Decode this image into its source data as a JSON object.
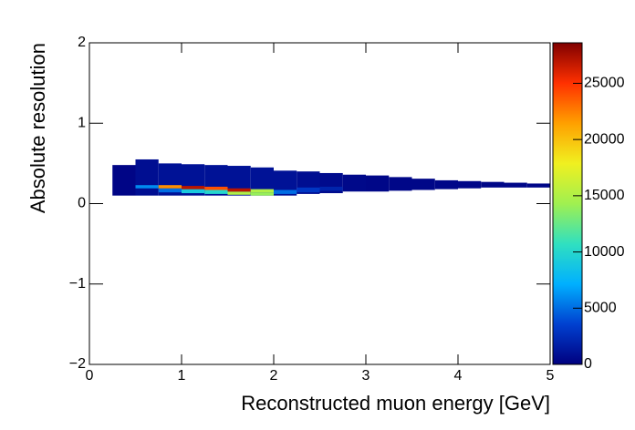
{
  "chart_data": {
    "type": "heatmap",
    "x_label": "Reconstructed muon energy [GeV]",
    "y_label": "Absolute resolution",
    "xlim": [
      0,
      5
    ],
    "xticks": [
      0,
      1,
      2,
      3,
      4,
      5
    ],
    "ylim": [
      -2,
      2
    ],
    "yticks": [
      {
        "value": -2,
        "label": "−2"
      },
      {
        "value": -1,
        "label": "−1"
      },
      0,
      1,
      2
    ],
    "zlim": [
      0,
      28600
    ],
    "zticks": [
      0,
      5000,
      10000,
      15000,
      20000,
      25000
    ],
    "colormap": [
      "#00007f",
      "#0040d0",
      "#00b0ff",
      "#30e0c0",
      "#a0f050",
      "#f0f020",
      "#ffa000",
      "#ff3000",
      "#800000"
    ],
    "cells": [
      {
        "x": [
          0.25,
          0.5
        ],
        "y": [
          0.1,
          0.48
        ],
        "value": 300
      },
      {
        "x": [
          0.5,
          0.75
        ],
        "y": [
          0.1,
          0.55
        ],
        "value": 800
      },
      {
        "x": [
          0.5,
          0.75
        ],
        "y": [
          0.19,
          0.23
        ],
        "value": 6000
      },
      {
        "x": [
          0.75,
          1.0
        ],
        "y": [
          0.1,
          0.5
        ],
        "value": 1000
      },
      {
        "x": [
          0.75,
          1.0
        ],
        "y": [
          0.14,
          0.19
        ],
        "value": 5000
      },
      {
        "x": [
          0.75,
          1.0
        ],
        "y": [
          0.19,
          0.23
        ],
        "value": 22000
      },
      {
        "x": [
          1.0,
          1.25
        ],
        "y": [
          0.1,
          0.49
        ],
        "value": 1000
      },
      {
        "x": [
          1.0,
          1.25
        ],
        "y": [
          0.13,
          0.18
        ],
        "value": 9000
      },
      {
        "x": [
          1.0,
          1.25
        ],
        "y": [
          0.18,
          0.22
        ],
        "value": 27000
      },
      {
        "x": [
          1.25,
          1.5
        ],
        "y": [
          0.1,
          0.48
        ],
        "value": 1000
      },
      {
        "x": [
          1.25,
          1.5
        ],
        "y": [
          0.12,
          0.17
        ],
        "value": 10000
      },
      {
        "x": [
          1.25,
          1.5
        ],
        "y": [
          0.17,
          0.21
        ],
        "value": 24000
      },
      {
        "x": [
          1.5,
          1.75
        ],
        "y": [
          0.1,
          0.47
        ],
        "value": 1000
      },
      {
        "x": [
          1.5,
          1.75
        ],
        "y": [
          0.11,
          0.15
        ],
        "value": 15000
      },
      {
        "x": [
          1.5,
          1.75
        ],
        "y": [
          0.15,
          0.19
        ],
        "value": 27000
      },
      {
        "x": [
          1.75,
          2.0
        ],
        "y": [
          0.1,
          0.45
        ],
        "value": 1000
      },
      {
        "x": [
          1.75,
          2.0
        ],
        "y": [
          0.1,
          0.14
        ],
        "value": 14000
      },
      {
        "x": [
          1.75,
          2.0
        ],
        "y": [
          0.14,
          0.18
        ],
        "value": 15000
      },
      {
        "x": [
          2.0,
          2.25
        ],
        "y": [
          0.1,
          0.41
        ],
        "value": 1000
      },
      {
        "x": [
          2.0,
          2.25
        ],
        "y": [
          0.12,
          0.17
        ],
        "value": 5000
      },
      {
        "x": [
          2.25,
          2.5
        ],
        "y": [
          0.12,
          0.4
        ],
        "value": 800
      },
      {
        "x": [
          2.25,
          2.5
        ],
        "y": [
          0.14,
          0.2
        ],
        "value": 3000
      },
      {
        "x": [
          2.5,
          2.75
        ],
        "y": [
          0.13,
          0.38
        ],
        "value": 600
      },
      {
        "x": [
          2.5,
          2.75
        ],
        "y": [
          0.16,
          0.21
        ],
        "value": 2000
      },
      {
        "x": [
          2.75,
          3.0
        ],
        "y": [
          0.15,
          0.36
        ],
        "value": 500
      },
      {
        "x": [
          3.0,
          3.25
        ],
        "y": [
          0.15,
          0.35
        ],
        "value": 400
      },
      {
        "x": [
          3.25,
          3.5
        ],
        "y": [
          0.16,
          0.33
        ],
        "value": 400
      },
      {
        "x": [
          3.5,
          3.75
        ],
        "y": [
          0.17,
          0.31
        ],
        "value": 400
      },
      {
        "x": [
          3.75,
          4.0
        ],
        "y": [
          0.18,
          0.29
        ],
        "value": 400
      },
      {
        "x": [
          4.0,
          4.25
        ],
        "y": [
          0.19,
          0.28
        ],
        "value": 400
      },
      {
        "x": [
          4.25,
          4.5
        ],
        "y": [
          0.2,
          0.27
        ],
        "value": 400
      },
      {
        "x": [
          4.5,
          4.75
        ],
        "y": [
          0.2,
          0.26
        ],
        "value": 400
      },
      {
        "x": [
          4.75,
          5.0
        ],
        "y": [
          0.2,
          0.25
        ],
        "value": 400
      }
    ]
  }
}
